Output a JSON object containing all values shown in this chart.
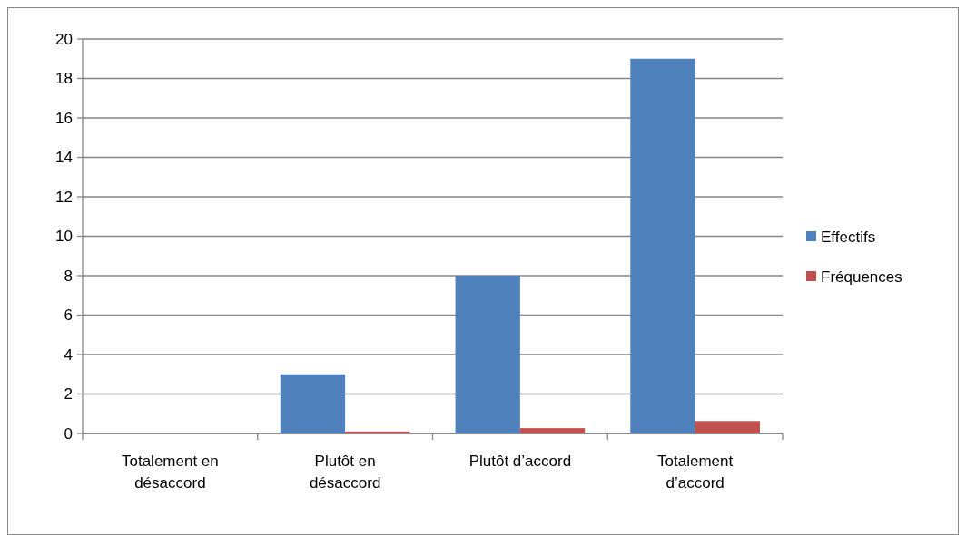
{
  "chart_data": {
    "type": "bar",
    "categories": [
      "Totalement en désaccord",
      "Plutôt en désaccord",
      "Plutôt d’accord",
      "Totalement d’accord"
    ],
    "series": [
      {
        "name": "Effectifs",
        "color": "#4f81bd",
        "values": [
          0,
          3,
          8,
          19
        ]
      },
      {
        "name": "Fréquences",
        "color": "#c0504d",
        "values": [
          0,
          0.1,
          0.27,
          0.63
        ]
      }
    ],
    "ylim": [
      0,
      20
    ],
    "yticks": [
      0,
      2,
      4,
      6,
      8,
      10,
      12,
      14,
      16,
      18,
      20
    ],
    "grid": "y",
    "legend": "right"
  }
}
